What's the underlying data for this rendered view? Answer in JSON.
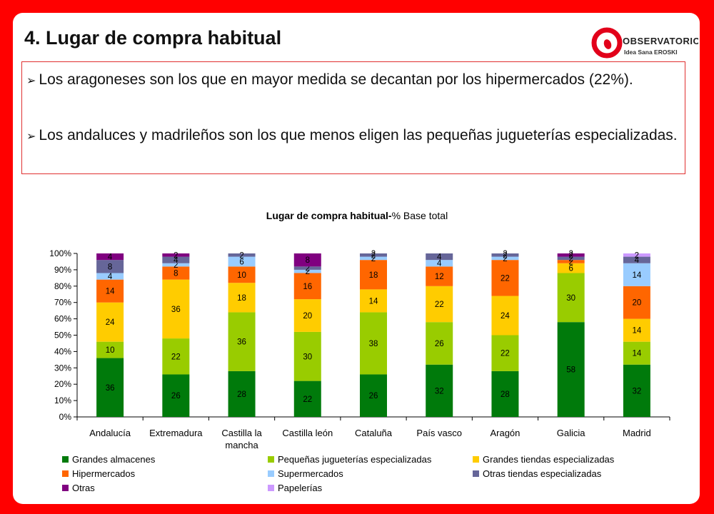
{
  "slide": {
    "title": "4. Lugar de compra habitual",
    "logo_text": "observatorio",
    "logo_subtext": "Idea Sana EROSKI",
    "bullets": [
      "Los aragoneses son los que en mayor medida se decantan por los hipermercados (22%).",
      "Los andaluces y madrileños son los que menos eligen las pequeñas jugueterías especializadas."
    ],
    "bullet_marker": "➢"
  },
  "colors": {
    "background": "#ff0000",
    "logo_red": "#e2001a"
  },
  "chart_data": {
    "type": "bar",
    "stacked": true,
    "title_bold": "Lugar de compra habitual-",
    "title_rest": "% Base total",
    "ylim": [
      0,
      100
    ],
    "yticks": [
      "0%",
      "10%",
      "20%",
      "30%",
      "40%",
      "50%",
      "60%",
      "70%",
      "80%",
      "90%",
      "100%"
    ],
    "categories": [
      "Andalucía",
      "Extremadura",
      "Castilla la mancha",
      "Castilla león",
      "Cataluña",
      "País vasco",
      "Aragón",
      "Galicia",
      "Madrid"
    ],
    "category_lines": [
      [
        "Andalucía"
      ],
      [
        "Extremadura"
      ],
      [
        "Castilla la",
        "mancha"
      ],
      [
        "Castilla león"
      ],
      [
        "Cataluña"
      ],
      [
        "País vasco"
      ],
      [
        "Aragón"
      ],
      [
        "Galicia"
      ],
      [
        "Madrid"
      ]
    ],
    "legend_position": "bottom",
    "series": [
      {
        "name": "Grandes almacenes",
        "color": "#007a0b",
        "values": [
          36,
          26,
          28,
          22,
          26,
          32,
          28,
          58,
          32
        ]
      },
      {
        "name": "Pequeñas jugueterías especializadas",
        "color": "#99cc00",
        "values": [
          10,
          22,
          36,
          30,
          38,
          26,
          22,
          30,
          14
        ]
      },
      {
        "name": "Grandes tiendas especializadas",
        "color": "#ffcc00",
        "values": [
          24,
          36,
          18,
          20,
          14,
          22,
          24,
          6,
          14
        ]
      },
      {
        "name": "Hipermercados",
        "color": "#ff6600",
        "values": [
          14,
          8,
          10,
          16,
          18,
          12,
          22,
          2,
          20
        ]
      },
      {
        "name": "Supermercados",
        "color": "#99ccff",
        "values": [
          4,
          2,
          6,
          2,
          2,
          4,
          2,
          0,
          14
        ]
      },
      {
        "name": "Otras tiendas especializadas",
        "color": "#666699",
        "values": [
          8,
          4,
          2,
          2,
          2,
          4,
          2,
          2,
          4
        ]
      },
      {
        "name": "Otras",
        "color": "#800080",
        "values": [
          4,
          2,
          0,
          8,
          0,
          0,
          2,
          2,
          0
        ]
      },
      {
        "name": "Papelerías",
        "color": "#cc99ff",
        "values": [
          0,
          0,
          0,
          0,
          2,
          0,
          0,
          2,
          2
        ]
      }
    ]
  }
}
